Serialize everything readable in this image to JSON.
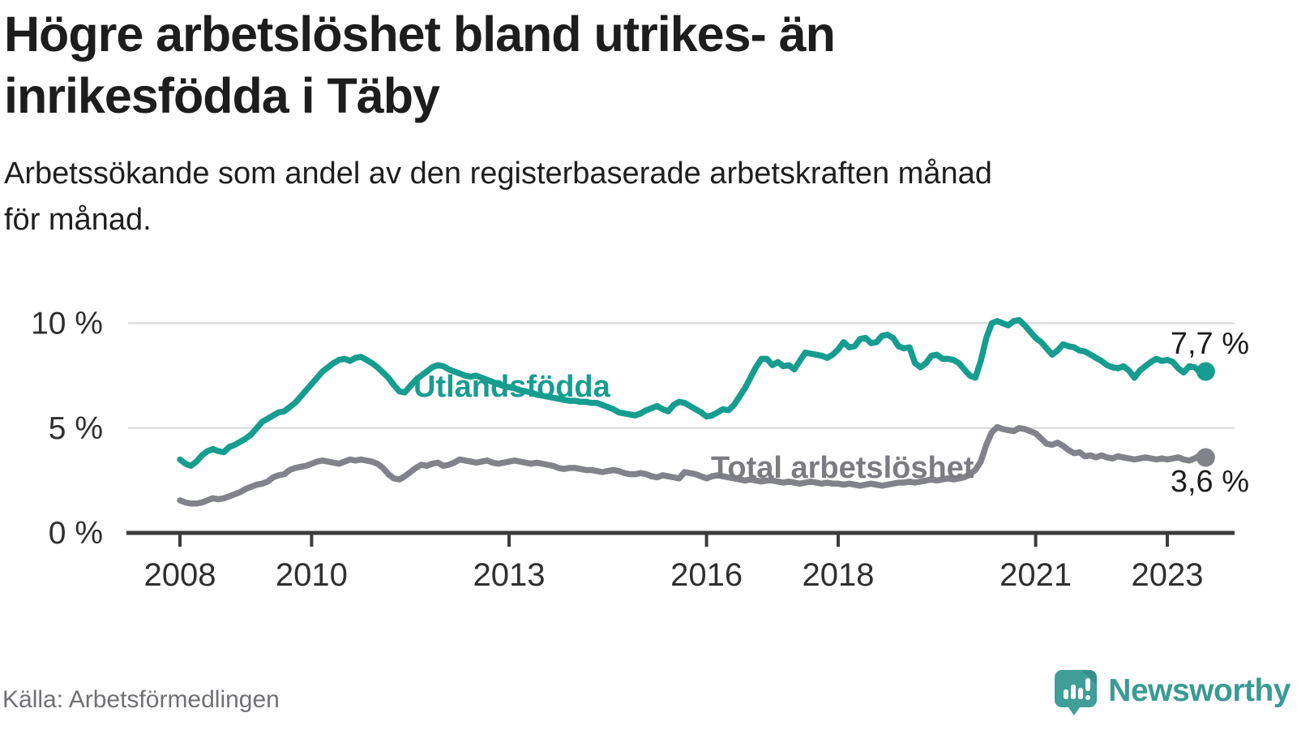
{
  "header": {
    "title": "Högre arbetslöshet bland utrikes- än\ninrikesfödda i Täby",
    "subtitle": "Arbetssökande som andel av den registerbaserade arbetskraften månad\nför månad."
  },
  "footer": {
    "source": "Källa: Arbetsförmedlingen",
    "brand": "Newsworthy"
  },
  "colors": {
    "teal_line": "#169d90",
    "gray_line": "#82828a",
    "gray_label": "#7b7b81",
    "end_label": "#1d1d1d",
    "axis": "#3b3b3b",
    "grid": "#dedede",
    "tick_label": "#2f2f2f",
    "logo_teal": "#3f9e98",
    "logo_fold": "#2e837e"
  },
  "chart_data": {
    "type": "line",
    "title": "Högre arbetslöshet bland utrikes- än inrikesfödda i Täby",
    "subtitle": "Arbetssökande som andel av den registerbaserade arbetskraften månad för månad.",
    "unit": "%",
    "x_start": "2008-01",
    "x_end": "2023-08",
    "x_interval": "monthly",
    "xticks": [
      2008,
      2010,
      2013,
      2016,
      2018,
      2021,
      2023
    ],
    "yticks": [
      {
        "value": 0,
        "label": "0 %"
      },
      {
        "value": 5,
        "label": "5 %"
      },
      {
        "value": 10,
        "label": "10 %"
      }
    ],
    "ylim": [
      0,
      10.5
    ],
    "grid": "horizontal-only",
    "legend_position": "inline-labels-on-lines",
    "series": [
      {
        "name": "Utlandsfödda",
        "end_label": "7,7 %",
        "end_value": 7.7,
        "color": "#169d90",
        "values": [
          3.5,
          3.3,
          3.2,
          3.4,
          3.7,
          3.9,
          4.0,
          3.9,
          3.85,
          4.1,
          4.2,
          4.35,
          4.5,
          4.7,
          5.0,
          5.3,
          5.45,
          5.6,
          5.75,
          5.8,
          6.0,
          6.2,
          6.5,
          6.8,
          7.1,
          7.4,
          7.7,
          7.9,
          8.1,
          8.25,
          8.3,
          8.2,
          8.35,
          8.4,
          8.25,
          8.1,
          7.9,
          7.65,
          7.4,
          7.05,
          6.75,
          6.7,
          7.0,
          7.3,
          7.5,
          7.7,
          7.9,
          8.0,
          7.95,
          7.8,
          7.7,
          7.6,
          7.5,
          7.45,
          7.5,
          7.4,
          7.3,
          7.2,
          7.1,
          7.0,
          6.95,
          6.9,
          6.8,
          6.75,
          6.7,
          6.6,
          6.55,
          6.5,
          6.45,
          6.4,
          6.35,
          6.3,
          6.3,
          6.25,
          6.25,
          6.2,
          6.2,
          6.1,
          6.0,
          5.9,
          5.75,
          5.7,
          5.65,
          5.6,
          5.7,
          5.85,
          5.95,
          6.05,
          5.9,
          5.8,
          6.1,
          6.25,
          6.2,
          6.05,
          5.9,
          5.75,
          5.55,
          5.6,
          5.75,
          5.9,
          5.85,
          6.1,
          6.5,
          6.9,
          7.4,
          7.9,
          8.3,
          8.3,
          8.0,
          8.15,
          7.95,
          8.0,
          7.8,
          8.2,
          8.6,
          8.55,
          8.5,
          8.45,
          8.35,
          8.5,
          8.75,
          9.1,
          8.85,
          8.9,
          9.25,
          9.3,
          9.05,
          9.1,
          9.4,
          9.45,
          9.3,
          8.9,
          8.8,
          8.85,
          8.1,
          7.9,
          8.1,
          8.45,
          8.5,
          8.3,
          8.3,
          8.25,
          8.1,
          7.8,
          7.5,
          7.4,
          8.2,
          9.3,
          10.0,
          10.1,
          10.0,
          9.9,
          10.1,
          10.15,
          9.9,
          9.6,
          9.3,
          9.1,
          8.8,
          8.5,
          8.7,
          9.0,
          8.9,
          8.85,
          8.7,
          8.65,
          8.5,
          8.35,
          8.2,
          8.0,
          7.9,
          7.85,
          7.95,
          7.75,
          7.4,
          7.75,
          7.95,
          8.15,
          8.3,
          8.2,
          8.25,
          8.15,
          7.85,
          7.65,
          7.95,
          7.9,
          7.65,
          7.7
        ]
      },
      {
        "name": "Total arbetslöshet",
        "end_label": "3,6 %",
        "end_value": 3.6,
        "color": "#82828a",
        "values": [
          1.55,
          1.45,
          1.4,
          1.4,
          1.45,
          1.55,
          1.65,
          1.6,
          1.65,
          1.75,
          1.85,
          1.95,
          2.1,
          2.2,
          2.3,
          2.35,
          2.45,
          2.65,
          2.75,
          2.8,
          3.0,
          3.1,
          3.15,
          3.2,
          3.3,
          3.4,
          3.45,
          3.4,
          3.35,
          3.3,
          3.4,
          3.5,
          3.45,
          3.5,
          3.45,
          3.4,
          3.3,
          3.1,
          2.8,
          2.6,
          2.55,
          2.7,
          2.9,
          3.1,
          3.25,
          3.2,
          3.3,
          3.35,
          3.2,
          3.25,
          3.35,
          3.5,
          3.45,
          3.4,
          3.35,
          3.4,
          3.45,
          3.35,
          3.3,
          3.35,
          3.4,
          3.45,
          3.4,
          3.35,
          3.3,
          3.35,
          3.3,
          3.25,
          3.2,
          3.1,
          3.05,
          3.1,
          3.1,
          3.05,
          3.0,
          3.0,
          2.95,
          2.9,
          2.95,
          3.0,
          2.95,
          2.85,
          2.8,
          2.8,
          2.85,
          2.8,
          2.7,
          2.65,
          2.75,
          2.7,
          2.65,
          2.6,
          2.9,
          2.85,
          2.8,
          2.7,
          2.6,
          2.7,
          2.75,
          2.7,
          2.65,
          2.6,
          2.55,
          2.5,
          2.55,
          2.5,
          2.45,
          2.5,
          2.5,
          2.45,
          2.4,
          2.45,
          2.4,
          2.35,
          2.4,
          2.45,
          2.4,
          2.35,
          2.4,
          2.35,
          2.35,
          2.3,
          2.35,
          2.3,
          2.25,
          2.3,
          2.35,
          2.3,
          2.25,
          2.3,
          2.35,
          2.4,
          2.4,
          2.45,
          2.4,
          2.45,
          2.5,
          2.55,
          2.5,
          2.55,
          2.6,
          2.55,
          2.6,
          2.65,
          2.8,
          3.0,
          3.4,
          4.2,
          4.8,
          5.05,
          4.95,
          4.9,
          4.85,
          5.0,
          4.95,
          4.85,
          4.75,
          4.5,
          4.25,
          4.2,
          4.3,
          4.15,
          3.95,
          3.8,
          3.85,
          3.65,
          3.7,
          3.6,
          3.7,
          3.6,
          3.55,
          3.65,
          3.6,
          3.55,
          3.5,
          3.55,
          3.6,
          3.55,
          3.5,
          3.55,
          3.5,
          3.55,
          3.6,
          3.5,
          3.45,
          3.55,
          3.7,
          3.6
        ]
      }
    ]
  }
}
